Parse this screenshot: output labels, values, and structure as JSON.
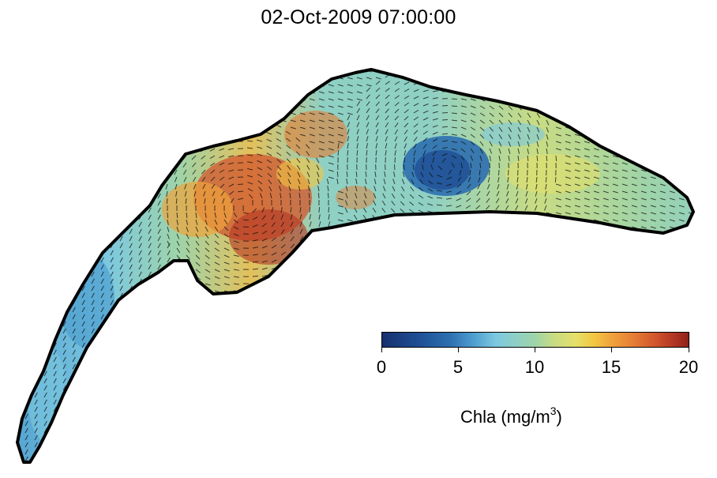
{
  "title": "02-Oct-2009 07:00:00",
  "colorbar": {
    "ticks": [
      "0",
      "5",
      "10",
      "15",
      "20"
    ],
    "tick_values": [
      0,
      5,
      10,
      15,
      20
    ],
    "range": [
      0,
      20
    ],
    "label": "Chla (mg/m",
    "label_sup": "3",
    "label_suffix": ")",
    "colormap": [
      "#16306e",
      "#2e6fb0",
      "#7cc8e0",
      "#9fd4a8",
      "#e4e06a",
      "#f0a23c",
      "#d2562d",
      "#8f2119"
    ]
  },
  "map": {
    "outline_color": "#000000",
    "arrow_color": "#111111",
    "low_chla_eddy_color": "#2a5ea8",
    "high_chla_color": "#c7492a"
  }
}
